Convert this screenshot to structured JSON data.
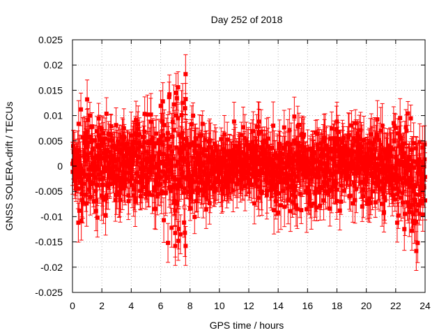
{
  "chart_data": {
    "type": "scatter",
    "title": "Day 252 of 2018",
    "xlabel": "GPS time / hours",
    "ylabel": "GNSS SOLERA-drift / TECUs",
    "xlim": [
      0,
      24
    ],
    "ylim": [
      -0.025,
      0.025
    ],
    "xticks": [
      "0",
      "2",
      "4",
      "6",
      "8",
      "10",
      "12",
      "14",
      "16",
      "18",
      "20",
      "22",
      "24"
    ],
    "yticks": [
      "0.025",
      "0.02",
      "0.015",
      "0.01",
      "0.005",
      "0",
      "-0.005",
      "-0.01",
      "-0.015",
      "-0.02",
      "-0.025"
    ],
    "grid": true,
    "color": "#ff0000",
    "marker": "square",
    "error_bars": true,
    "typical_error": 0.0035,
    "envelope": [
      {
        "x": 0,
        "y_min": -0.006,
        "y_max": 0.006
      },
      {
        "x": 0.5,
        "y_min": -0.011,
        "y_max": 0.011
      },
      {
        "x": 1,
        "y_min": -0.011,
        "y_max": 0.0125
      },
      {
        "x": 2,
        "y_min": -0.01,
        "y_max": 0.011
      },
      {
        "x": 3,
        "y_min": -0.009,
        "y_max": 0.009
      },
      {
        "x": 4,
        "y_min": -0.009,
        "y_max": 0.0085
      },
      {
        "x": 5,
        "y_min": -0.009,
        "y_max": 0.0105
      },
      {
        "x": 6,
        "y_min": -0.0105,
        "y_max": 0.0125
      },
      {
        "x": 7,
        "y_min": -0.016,
        "y_max": 0.0145
      },
      {
        "x": 7.6,
        "y_min": -0.016,
        "y_max": 0.018
      },
      {
        "x": 8,
        "y_min": -0.011,
        "y_max": 0.0105
      },
      {
        "x": 9,
        "y_min": -0.008,
        "y_max": 0.008
      },
      {
        "x": 10,
        "y_min": -0.008,
        "y_max": 0.0075
      },
      {
        "x": 11,
        "y_min": -0.008,
        "y_max": 0.008
      },
      {
        "x": 12,
        "y_min": -0.007,
        "y_max": 0.0075
      },
      {
        "x": 13,
        "y_min": -0.008,
        "y_max": 0.008
      },
      {
        "x": 14,
        "y_min": -0.009,
        "y_max": 0.008
      },
      {
        "x": 15,
        "y_min": -0.009,
        "y_max": 0.01
      },
      {
        "x": 16,
        "y_min": -0.0085,
        "y_max": 0.0085
      },
      {
        "x": 17,
        "y_min": -0.008,
        "y_max": 0.008
      },
      {
        "x": 18,
        "y_min": -0.0095,
        "y_max": 0.009
      },
      {
        "x": 19,
        "y_min": -0.008,
        "y_max": 0.0085
      },
      {
        "x": 20,
        "y_min": -0.008,
        "y_max": 0.0085
      },
      {
        "x": 21,
        "y_min": -0.009,
        "y_max": 0.0095
      },
      {
        "x": 22,
        "y_min": -0.011,
        "y_max": 0.01
      },
      {
        "x": 23,
        "y_min": -0.0135,
        "y_max": 0.0105
      },
      {
        "x": 23.4,
        "y_min": -0.017,
        "y_max": 0.0105
      },
      {
        "x": 24,
        "y_min": -0.007,
        "y_max": 0.007
      }
    ],
    "outliers": [
      {
        "x": 7.7,
        "y": 0.0182
      },
      {
        "x": 7.05,
        "y": 0.0145
      },
      {
        "x": 6.6,
        "y": 0.0142
      },
      {
        "x": 1.0,
        "y": 0.0132
      },
      {
        "x": 7.5,
        "y": 0.0125
      },
      {
        "x": 6.9,
        "y": 0.0122
      },
      {
        "x": 6.5,
        "y": -0.0152
      },
      {
        "x": 7.2,
        "y": -0.0148
      },
      {
        "x": 7.0,
        "y": -0.0158
      },
      {
        "x": 7.7,
        "y": -0.0158
      },
      {
        "x": 6.75,
        "y": -0.0122
      },
      {
        "x": 7.35,
        "y": -0.0135
      },
      {
        "x": 23.4,
        "y": -0.0168
      },
      {
        "x": 23.1,
        "y": -0.0128
      },
      {
        "x": 22.1,
        "y": -0.0112
      },
      {
        "x": 0.4,
        "y": -0.0112
      },
      {
        "x": 0.6,
        "y": -0.0108
      },
      {
        "x": 1.7,
        "y": -0.0102
      },
      {
        "x": 5.1,
        "y": 0.0102
      },
      {
        "x": 12.7,
        "y": 0.0088
      },
      {
        "x": 15.1,
        "y": 0.0098
      },
      {
        "x": 11.0,
        "y": 0.0088
      },
      {
        "x": 18.0,
        "y": 0.0088
      },
      {
        "x": 22.3,
        "y": 0.0095
      },
      {
        "x": 3.5,
        "y": 0.0075
      },
      {
        "x": 14.0,
        "y": -0.0092
      },
      {
        "x": 15.3,
        "y": -0.0085
      },
      {
        "x": 18.2,
        "y": -0.0088
      },
      {
        "x": 9.1,
        "y": -0.0085
      },
      {
        "x": 17.1,
        "y": -0.0068
      },
      {
        "x": 21.2,
        "y": -0.0092
      },
      {
        "x": 24.0,
        "y": -0.0068
      }
    ]
  }
}
